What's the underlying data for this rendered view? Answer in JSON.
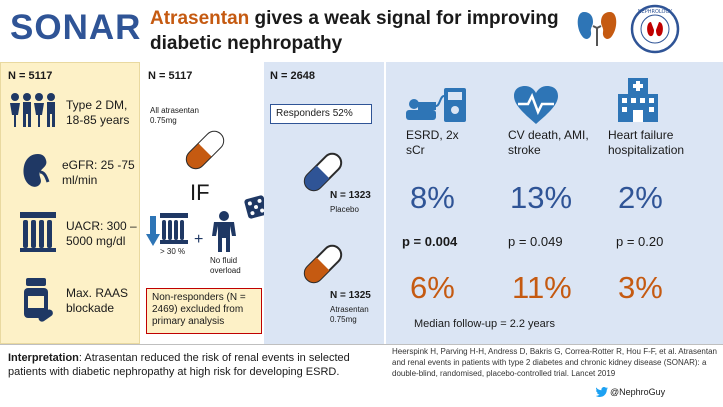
{
  "header": {
    "brand": "SONAR",
    "title_highlight": "Atrasentan",
    "title_rest_line1": "gives a weak signal for improving",
    "title_line2": "diabetic nephropathy",
    "logo_text": "NEPHROLOGY"
  },
  "population": {
    "n": "N = 5117",
    "items": [
      {
        "icon": "people-icon",
        "text": "Type 2 DM, 18-85 years"
      },
      {
        "icon": "kidney-icon",
        "text": "eGFR: 25 -75 ml/min"
      },
      {
        "icon": "lab-tube-icon",
        "text": "UACR: 300 – 5000 mg/dl"
      },
      {
        "icon": "pill-bottle-icon",
        "text": "Max. RAAS blockade"
      }
    ]
  },
  "enrichment": {
    "n": "N = 5117",
    "group": "All atrasentan 0.75mg",
    "if_label": "IF",
    "reduction": "> 30 %",
    "no_fluid": "No fluid overload",
    "nonresponders": "Non-responders (N = 2469) excluded from primary analysis"
  },
  "randomized": {
    "n": "N = 2648",
    "responders": "Responders 52%",
    "placebo_n": "N = 1323",
    "placebo_label": "Placebo",
    "atrasentan_n": "N = 1325",
    "atrasentan_label": "Atrasentan 0.75mg"
  },
  "outcomes": {
    "columns": [
      {
        "icon": "dialysis-icon",
        "label": "ESRD, 2x sCr",
        "placebo": "8%",
        "p": "p = 0.004",
        "atrasentan": "6%"
      },
      {
        "icon": "heart-pulse-icon",
        "label": "CV death, AMI, stroke",
        "placebo": "13%",
        "p": "p = 0.049",
        "atrasentan": "11%"
      },
      {
        "icon": "hospital-icon",
        "label": "Heart failure hospitalization",
        "placebo": "2%",
        "p": "p = 0.20",
        "atrasentan": "3%"
      }
    ],
    "followup": "Median follow-up = 2.2 years"
  },
  "footer": {
    "interp_label": "Interpretation",
    "interp_text": ": Atrasentan reduced the risk of renal events in selected patients with diabetic nephropathy at high risk for developing ESRD.",
    "reference": "Heerspink H, Parving H-H, Andress D, Bakris G, Correa-Rotter R, Hou F-F, et al. Atrasentan and renal events in patients with type 2 diabetes and chronic kidney disease (SONAR): a double-blind, randomised, placebo-controlled trial. Lancet 2019",
    "handle": "@NephroGuy"
  },
  "colors": {
    "blue": "#2f5496",
    "orange": "#c55a11",
    "panel": "#dbe5f4",
    "yellow": "#fdf1c7",
    "red": "#c00000"
  }
}
